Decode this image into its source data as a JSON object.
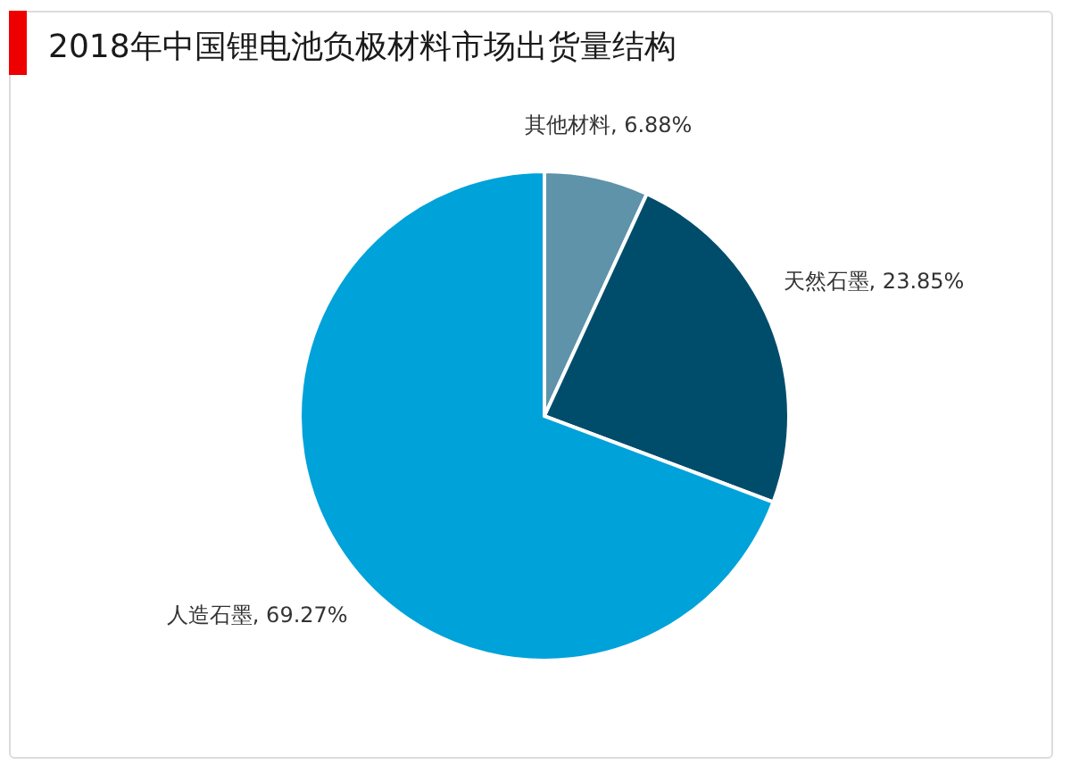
{
  "chart_data": {
    "type": "pie",
    "title": "2018年中国锂电池负极材料市场出货量结构",
    "categories": [
      "其他材料",
      "天然石墨",
      "人造石墨"
    ],
    "values": [
      6.88,
      23.85,
      69.27
    ],
    "colors": [
      "#5e93aa",
      "#004d6b",
      "#00a2da"
    ],
    "value_labels": [
      "6.88%",
      "23.85%",
      "69.27%"
    ]
  }
}
